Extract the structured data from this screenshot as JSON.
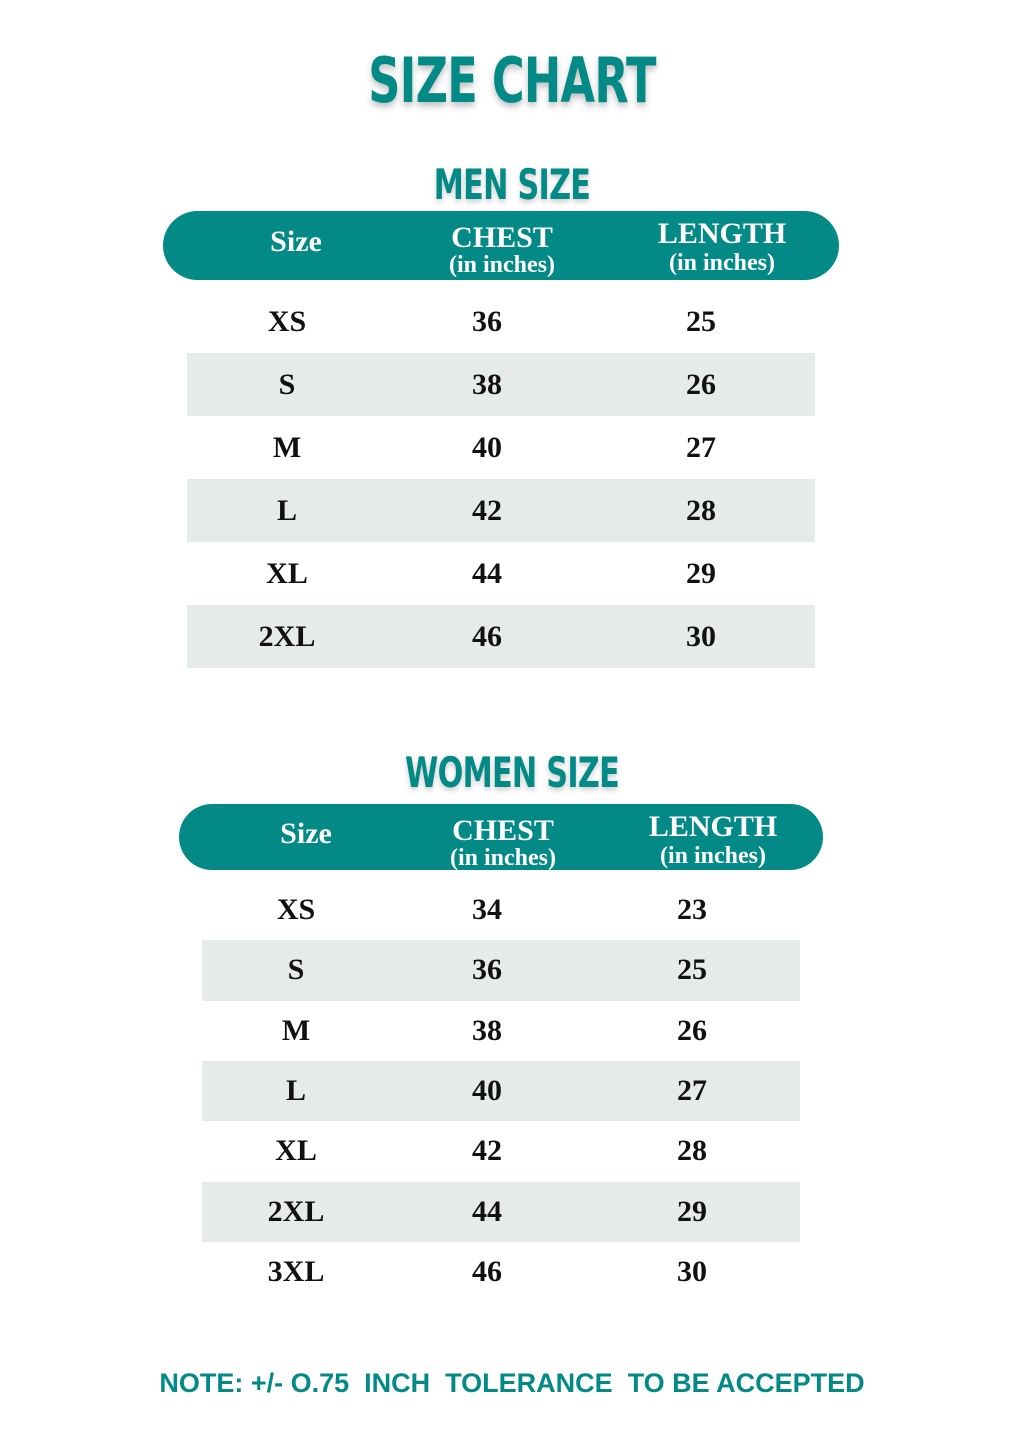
{
  "title": "SIZE CHART",
  "accent_color": "#038a87",
  "men": {
    "heading": "MEN SIZE",
    "columns": {
      "size": "Size",
      "chest": "CHEST",
      "chest_unit": "(in inches)",
      "length": "LENGTH",
      "length_unit": "(in inches)"
    },
    "rows": [
      {
        "size": "XS",
        "chest": "36",
        "length": "25"
      },
      {
        "size": "S",
        "chest": "38",
        "length": "26"
      },
      {
        "size": "M",
        "chest": "40",
        "length": "27"
      },
      {
        "size": "L",
        "chest": "42",
        "length": "28"
      },
      {
        "size": "XL",
        "chest": "44",
        "length": "29"
      },
      {
        "size": "2XL",
        "chest": "46",
        "length": "30"
      }
    ]
  },
  "women": {
    "heading": "WOMEN SIZE",
    "columns": {
      "size": "Size",
      "chest": "CHEST",
      "chest_unit": "(in inches)",
      "length": "LENGTH",
      "length_unit": "(in inches)"
    },
    "rows": [
      {
        "size": "XS",
        "chest": "34",
        "length": "23"
      },
      {
        "size": "S",
        "chest": "36",
        "length": "25"
      },
      {
        "size": "M",
        "chest": "38",
        "length": "26"
      },
      {
        "size": "L",
        "chest": "40",
        "length": "27"
      },
      {
        "size": "XL",
        "chest": "42",
        "length": "28"
      },
      {
        "size": "2XL",
        "chest": "44",
        "length": "29"
      },
      {
        "size": "3XL",
        "chest": "46",
        "length": "30"
      }
    ]
  },
  "note": "NOTE: +/- O.75  INCH  TOLERANCE  TO BE ACCEPTED"
}
